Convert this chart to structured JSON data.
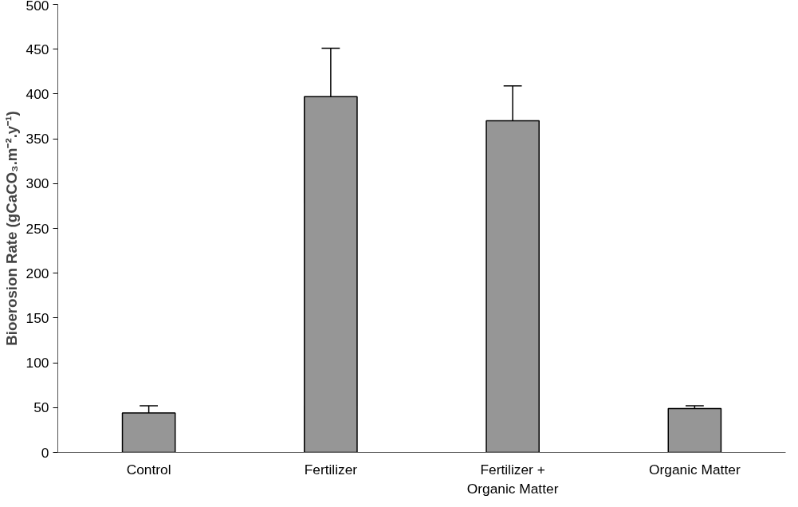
{
  "chart_data": {
    "type": "bar",
    "ylabel": "Bioerosion Rate (gCaCO₃.m⁻².y⁻¹)",
    "categories": [
      "Control",
      "Fertilizer",
      "Fertilizer + Organic Matter",
      "Organic Matter"
    ],
    "values": [
      44,
      397,
      370,
      49
    ],
    "errors": [
      [
        44,
        52
      ],
      [
        397,
        451
      ],
      [
        370,
        409
      ],
      [
        49,
        52
      ]
    ],
    "color": "#969696",
    "ylim": [
      0,
      500
    ],
    "yticks": [
      0,
      50,
      100,
      150,
      200,
      250,
      300,
      350,
      400,
      450,
      500
    ],
    "grid": false
  }
}
